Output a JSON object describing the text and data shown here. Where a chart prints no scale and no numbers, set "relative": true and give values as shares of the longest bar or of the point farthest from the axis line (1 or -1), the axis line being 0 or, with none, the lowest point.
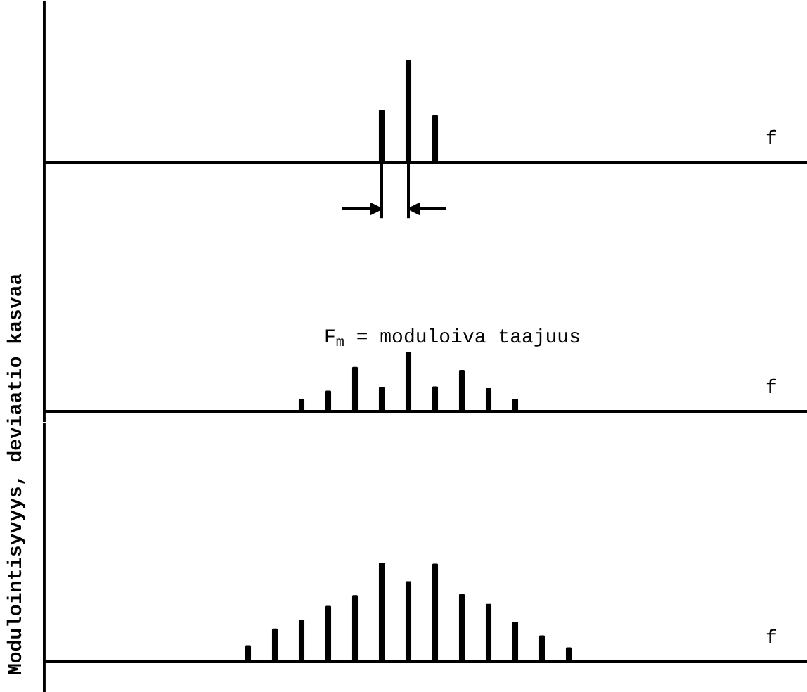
{
  "chart_data": [
    {
      "type": "bar",
      "relative": true,
      "ylabel": "Modulointisyvyys, deviaatio kasvaa",
      "categories": [
        null,
        null,
        null
      ],
      "values": [
        0.51,
        1,
        0.46
      ],
      "color": "#000000",
      "annotations": [
        "f",
        "F$_{m}$ = moduloiva taajuus"
      ]
    },
    {
      "type": "bar",
      "relative": true,
      "categories": [
        null,
        null,
        null,
        null,
        null,
        null,
        null,
        null,
        null
      ],
      "values": [
        0.2,
        0.34,
        0.74,
        0.4,
        1,
        0.41,
        0.69,
        0.38,
        0.2
      ],
      "color": "#000000",
      "annotations": [
        "f"
      ]
    },
    {
      "type": "bar",
      "relative": true,
      "categories": [
        null,
        null,
        null,
        null,
        null,
        null,
        null,
        null,
        null,
        null,
        null,
        null,
        null
      ],
      "values": [
        0.16,
        0.33,
        0.42,
        0.56,
        0.67,
        1,
        0.81,
        0.99,
        0.68,
        0.58,
        0.4,
        0.26,
        0.14
      ],
      "color": "#000000",
      "annotations": [
        "f"
      ]
    }
  ]
}
